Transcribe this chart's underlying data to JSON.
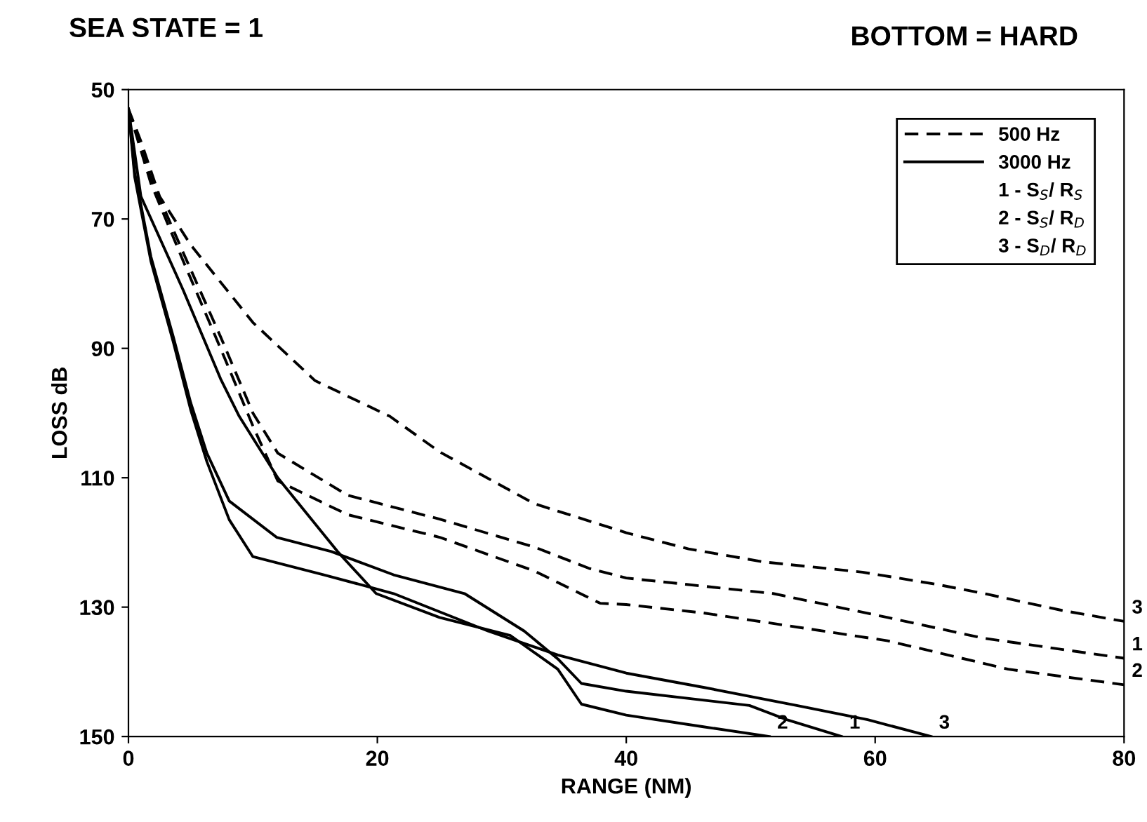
{
  "chart_data": {
    "type": "line",
    "title": "SEA STATE = 1",
    "subtitle": "BOTTOM = HARD",
    "xlabel": "RANGE (NM)",
    "ylabel": "LOSS dB",
    "xlim": [
      0,
      80
    ],
    "xticks": [
      0,
      20,
      40,
      60,
      80
    ],
    "ylim": [
      150,
      50
    ],
    "yticks": [
      50,
      70,
      90,
      110,
      130,
      150
    ],
    "grid": false,
    "legend": "top right",
    "marker": "none",
    "annotations": [
      "1 - S$_{S}$/ R$_{S}$",
      "2 - S$_{S}$/ R$_{D}$",
      "3 - S$_{D}$/ R$_{D}$",
      {
        "text": "3",
        "x": 80,
        "y": 132.2
      },
      {
        "text": "1",
        "x": 80,
        "y": 137.9
      },
      {
        "text": "2",
        "x": 80,
        "y": 142
      },
      {
        "text": "2",
        "x": 51.5,
        "y": 150
      },
      {
        "text": "1",
        "x": 57.3,
        "y": 150
      },
      {
        "text": "3",
        "x": 64.5,
        "y": 150
      }
    ],
    "series": [
      {
        "name": "500 Hz",
        "color": "#000000",
        "line_style": "dashed",
        "x": [
          0,
          1,
          2.5,
          5,
          10,
          15,
          21,
          25,
          32.6,
          40,
          45,
          51,
          59,
          65,
          69,
          75,
          80
        ],
        "values": [
          53,
          58,
          66.5,
          74,
          86,
          95,
          100.5,
          106,
          114,
          118.5,
          121,
          123,
          124.6,
          126.5,
          128,
          130.5,
          132.2
        ]
      },
      {
        "color": "#000000",
        "line_style": "dashed",
        "x": [
          0,
          1.8,
          4.4,
          7.4,
          10,
          12,
          17.6,
          25,
          32.6,
          37,
          40,
          51.8,
          61,
          68.7,
          80
        ],
        "values": [
          53,
          63.7,
          75.2,
          88.2,
          100,
          106.2,
          112.7,
          116.4,
          120.7,
          124,
          125.5,
          127.9,
          131.6,
          134.8,
          137.9
        ]
      },
      {
        "color": "#000000",
        "line_style": "dashed",
        "x": [
          0,
          1.8,
          4.4,
          7.4,
          10,
          12,
          17.6,
          25,
          32.6,
          37.9,
          40,
          46.2,
          61,
          70.7,
          80
        ],
        "values": [
          53,
          64.5,
          76.5,
          90,
          102,
          110.5,
          115.7,
          119.2,
          124.4,
          129.4,
          129.6,
          130.9,
          135.2,
          139.6,
          142
        ]
      },
      {
        "name": "3000 Hz",
        "color": "#000000",
        "line_style": "solid",
        "x": [
          0,
          1,
          4.4,
          7.4,
          8.9,
          12,
          16.8,
          19.9,
          25,
          30.7,
          34.5,
          36.4,
          40,
          46.2,
          51.5
        ],
        "values": [
          53,
          66.5,
          81,
          94.7,
          100.5,
          110,
          121.4,
          127.9,
          131.6,
          134.4,
          139.6,
          145,
          146.7,
          148.5,
          150
        ]
      },
      {
        "color": "#000000",
        "line_style": "solid",
        "x": [
          0,
          0.5,
          1.8,
          3.6,
          5,
          6.3,
          8.1,
          11.9,
          16.3,
          21.3,
          27,
          31.8,
          34.5,
          36.4,
          40,
          49.9,
          52.9,
          57.3
        ],
        "values": [
          53,
          62.8,
          75.8,
          88.2,
          98.4,
          106.2,
          113.6,
          119.2,
          121.4,
          125,
          127.9,
          133.7,
          138,
          141.8,
          143,
          145.2,
          147.4,
          150
        ]
      },
      {
        "color": "#000000",
        "line_style": "solid",
        "x": [
          0,
          0.5,
          1.8,
          3.6,
          5,
          6.3,
          8.1,
          10,
          15.7,
          21.3,
          28.9,
          34.5,
          40,
          46.2,
          53.7,
          59.4,
          64.5
        ],
        "values": [
          53,
          63.5,
          76.5,
          89,
          99.5,
          107.5,
          116.5,
          122.2,
          125,
          127.9,
          133.7,
          137.4,
          140.2,
          142.4,
          145.2,
          147.4,
          150
        ]
      }
    ]
  }
}
